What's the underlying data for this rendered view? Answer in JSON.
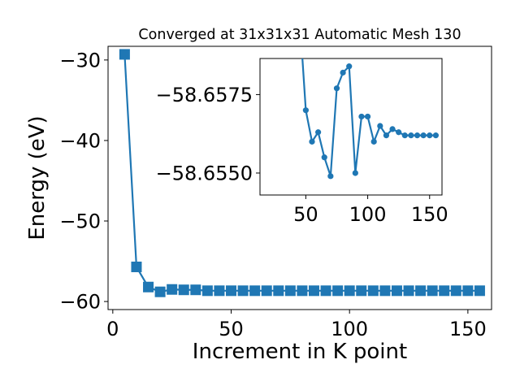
{
  "chart_data": [
    {
      "type": "line",
      "title": "Converged at 31x31x31 Automatic Mesh 130",
      "xlabel": "Increment in K point",
      "ylabel": "Energy (eV)",
      "xlim": [
        -2,
        160
      ],
      "ylim": [
        -61,
        -28.3
      ],
      "xticks": [
        0,
        50,
        100,
        150
      ],
      "xtick_labels": [
        "0",
        "50",
        "100",
        "150"
      ],
      "yticks": [
        -30,
        -40,
        -50,
        -60
      ],
      "ytick_labels": [
        "−30",
        "−40",
        "−50",
        "−60"
      ],
      "grid": false,
      "marker": "square",
      "color": "#1f77b4",
      "series": [
        {
          "x": [
            5,
            10,
            15,
            20,
            25,
            30,
            35,
            40,
            45,
            50,
            55,
            60,
            65,
            70,
            75,
            80,
            85,
            90,
            95,
            100,
            105,
            110,
            115,
            120,
            125,
            130,
            135,
            140,
            145,
            150,
            155
          ],
          "y": [
            -29.3,
            -55.7,
            -58.2,
            -58.8,
            -58.5,
            -58.55,
            -58.55,
            -58.66,
            -58.66,
            -58.66,
            -58.66,
            -58.66,
            -58.66,
            -58.66,
            -58.66,
            -58.66,
            -58.66,
            -58.66,
            -58.66,
            -58.66,
            -58.66,
            -58.66,
            -58.66,
            -58.66,
            -58.66,
            -58.66,
            -58.66,
            -58.66,
            -58.66,
            -58.66,
            -58.66
          ]
        }
      ]
    },
    {
      "type": "line",
      "title": "",
      "xlim": [
        13,
        160
      ],
      "ylim": [
        -58.6543,
        -58.65865
      ],
      "xticks": [
        50,
        100,
        150
      ],
      "xtick_labels": [
        "50",
        "100",
        "150"
      ],
      "yticks": [
        -58.6575,
        -58.655
      ],
      "ytick_labels": [
        "−58.6575",
        "−58.6550"
      ],
      "grid": false,
      "marker": "circle",
      "color": "#1f77b4",
      "series": [
        {
          "x": [
            45,
            50,
            55,
            60,
            65,
            70,
            75,
            80,
            85,
            90,
            95,
            100,
            105,
            110,
            115,
            120,
            125,
            130,
            135,
            140,
            145,
            150,
            155
          ],
          "y": [
            -58.66,
            -58.657,
            -58.656,
            -58.6563,
            -58.6555,
            -58.6549,
            -58.6577,
            -58.6582,
            -58.6584,
            -58.655,
            -58.6568,
            -58.6568,
            -58.656,
            -58.6565,
            -58.6562,
            -58.6564,
            -58.6563,
            -58.6562,
            -58.6562,
            -58.6562,
            -58.6562,
            -58.6562,
            -58.6562
          ]
        }
      ]
    }
  ]
}
